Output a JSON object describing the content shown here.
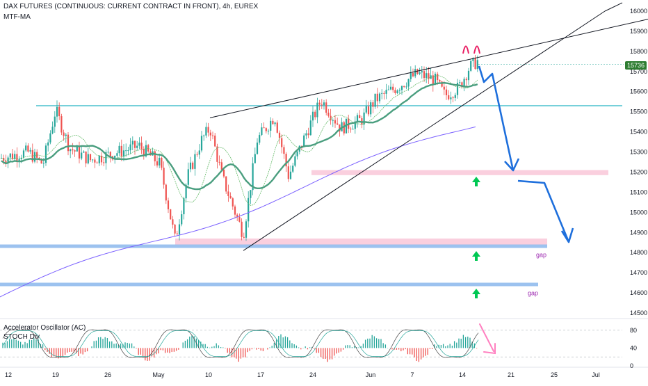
{
  "header": {
    "title": "DAX FUTURES (CONTINUOUS: CURRENT CONTRACT IN FRONT), 4h, EUREX",
    "indicator": "MTF-MA"
  },
  "lower_pane": {
    "label1": "Accelerator Oscillator (AC)",
    "label2": "STOCH Div"
  },
  "price_tag": {
    "value": "15736",
    "color": "#2e7d32"
  },
  "colors": {
    "bull": "#26a69a",
    "bear": "#ef5350",
    "ma_main": "#4a9e7f",
    "ma_light": "#66bb6a",
    "ma_slow": "#7b61ff",
    "support_line": "#26b5c4",
    "gap_zone": "#4a90e2",
    "pink_zone": "#f8bbd0",
    "arrow_blue": "#1e6fdc",
    "arrow_green": "#00c853",
    "wedge": "#131722",
    "pink_marker": "#e91e63",
    "pink_arrow": "#ff80c0",
    "gap_text": "#9c27b0"
  },
  "chart_data": {
    "type": "candlestick",
    "title": "DAX FUTURES (CONTINUOUS: CURRENT CONTRACT IN FRONT), 4h, EUREX",
    "x_tick_labels": [
      "12",
      "19",
      "26",
      "May",
      "10",
      "17",
      "24",
      "Jun",
      "7",
      "14",
      "21",
      "25",
      "Jul"
    ],
    "y_tick_labels": [
      "16000",
      "15900",
      "15800",
      "15700",
      "15600",
      "15500",
      "15400",
      "15300",
      "15200",
      "15100",
      "15000",
      "14900",
      "14800",
      "14700",
      "14600",
      "14500"
    ],
    "ylim": [
      14500,
      16000
    ],
    "last_price": 15736,
    "resistance_level": 15530,
    "gap_levels": [
      14830,
      14640
    ],
    "gap_label": "gap",
    "target_zone_1": [
      15190,
      15200
    ],
    "target_zone_2": [
      14840,
      14860
    ],
    "sub_pane": {
      "name": "Accelerator Oscillator (AC) / STOCH Div",
      "y_tick_labels": [
        "80",
        "40",
        "0"
      ],
      "ylim": [
        0,
        100
      ]
    }
  }
}
